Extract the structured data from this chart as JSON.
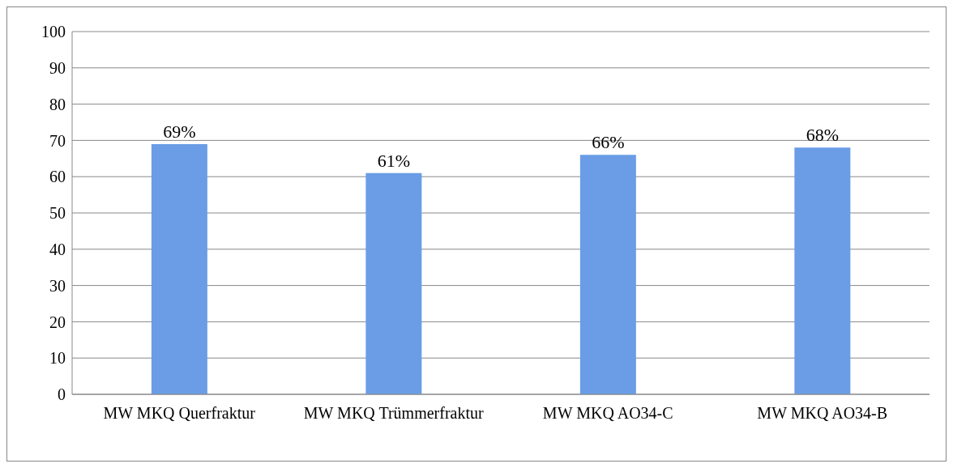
{
  "chart_data": {
    "type": "bar",
    "categories": [
      "MW MKQ Querfraktur",
      "MW MKQ Trümmerfraktur",
      "MW MKQ AO34-C",
      "MW MKQ AO34-B"
    ],
    "values": [
      69,
      61,
      66,
      68
    ],
    "value_labels": [
      "69%",
      "61%",
      "66%",
      "68%"
    ],
    "color": "#6a9de6",
    "ylim": [
      0,
      100
    ],
    "yticks": [
      0,
      10,
      20,
      30,
      40,
      50,
      60,
      70,
      80,
      90,
      100
    ],
    "grid": "y",
    "legend": false
  }
}
